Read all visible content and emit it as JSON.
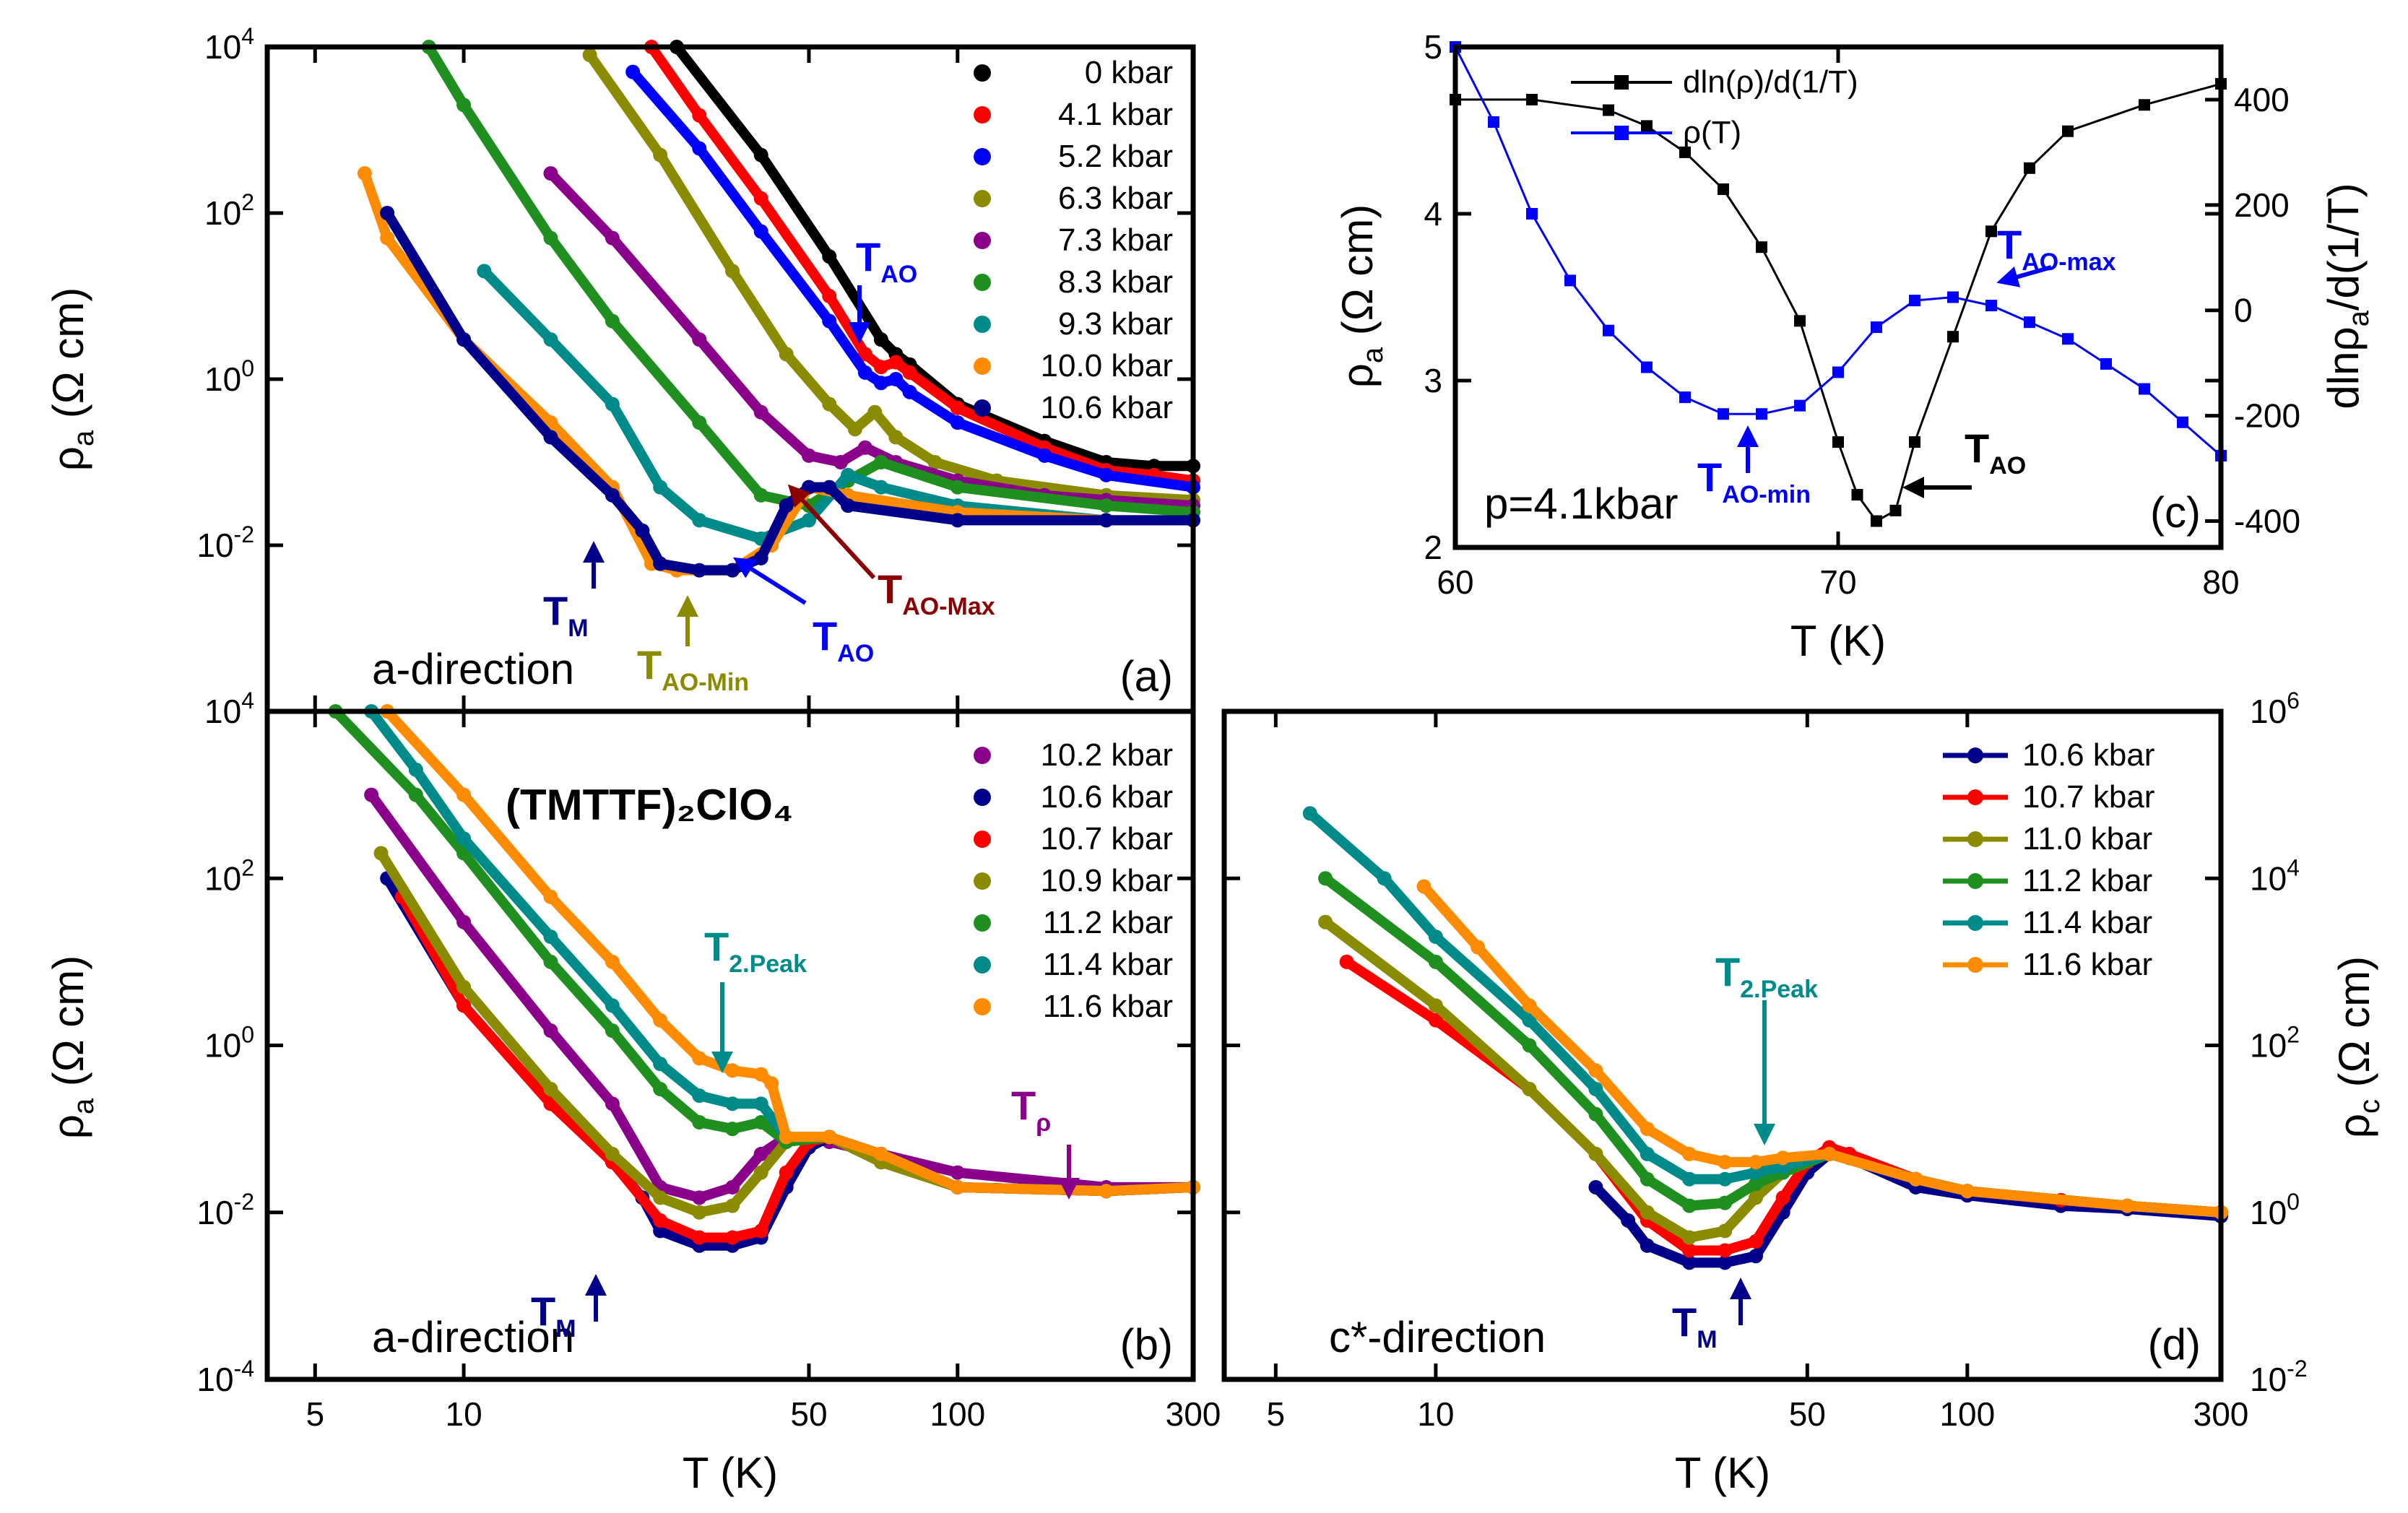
{
  "chart_data": [
    {
      "panel": "(a)",
      "type": "line",
      "xscale": "log",
      "yscale": "log",
      "xlim": [
        4,
        300
      ],
      "ylim": [
        0.0001,
        10000
      ],
      "xlabel": "",
      "ylabel": "ρ_a (Ω cm)",
      "xticks": [
        "5",
        "10",
        "50",
        "100",
        "300"
      ],
      "yticks": [
        "10^-2",
        "10^0",
        "10^2",
        "10^4"
      ],
      "direction_label": "a-direction",
      "series": [
        {
          "name": "0 kbar",
          "color": "#000000",
          "x": [
            27,
            40,
            55,
            70,
            75,
            80,
            100,
            150,
            200,
            250,
            300
          ],
          "y": [
            10000,
            500,
            30,
            3,
            2,
            1.5,
            0.5,
            0.18,
            0.1,
            0.09,
            0.09
          ]
        },
        {
          "name": "4.1 kbar",
          "color": "#ff0000",
          "x": [
            24,
            30,
            40,
            55,
            65,
            70,
            75,
            80,
            100,
            150,
            200,
            250,
            300
          ],
          "y": [
            10000,
            1500,
            150,
            10,
            2,
            1.4,
            1.6,
            1.2,
            0.45,
            0.15,
            0.08,
            0.07,
            0.06
          ]
        },
        {
          "name": "5.2 kbar",
          "color": "#0000ff",
          "x": [
            22,
            30,
            40,
            55,
            65,
            70,
            75,
            80,
            100,
            150,
            200,
            300
          ],
          "y": [
            5000,
            600,
            60,
            5,
            1.2,
            0.9,
            1.0,
            0.7,
            0.3,
            0.12,
            0.07,
            0.05
          ]
        },
        {
          "name": "6.3 kbar",
          "color": "#8b8b00",
          "x": [
            18,
            25,
            35,
            45,
            55,
            62,
            68,
            75,
            90,
            120,
            200,
            300
          ],
          "y": [
            8000,
            500,
            20,
            2,
            0.5,
            0.25,
            0.4,
            0.2,
            0.1,
            0.06,
            0.04,
            0.035
          ]
        },
        {
          "name": "7.3 kbar",
          "color": "#8b008b",
          "x": [
            15,
            20,
            30,
            40,
            50,
            58,
            65,
            75,
            100,
            150,
            200,
            300
          ],
          "y": [
            300,
            50,
            3,
            0.4,
            0.12,
            0.1,
            0.15,
            0.1,
            0.06,
            0.04,
            0.035,
            0.03
          ]
        },
        {
          "name": "8.3 kbar",
          "color": "#1f8f1f",
          "x": [
            8.5,
            10,
            15,
            20,
            30,
            40,
            50,
            60,
            70,
            100,
            200,
            300
          ],
          "y": [
            10000,
            2000,
            50,
            5,
            0.3,
            0.04,
            0.03,
            0.06,
            0.1,
            0.05,
            0.03,
            0.025
          ]
        },
        {
          "name": "9.3 kbar",
          "color": "#008b8b",
          "x": [
            11,
            15,
            20,
            25,
            30,
            40,
            50,
            60,
            70,
            100,
            200,
            300
          ],
          "y": [
            20,
            3,
            0.5,
            0.05,
            0.02,
            0.012,
            0.02,
            0.07,
            0.05,
            0.03,
            0.02,
            0.02
          ]
        },
        {
          "name": "10.0 kbar",
          "color": "#ff8c00",
          "x": [
            6.3,
            7,
            10,
            15,
            20,
            24,
            27,
            35,
            42,
            50,
            60,
            100,
            200,
            300
          ],
          "y": [
            300,
            50,
            3,
            0.3,
            0.05,
            0.006,
            0.005,
            0.005,
            0.01,
            0.05,
            0.04,
            0.025,
            0.02,
            0.02
          ]
        },
        {
          "name": "10.6 kbar",
          "color": "#00008b",
          "x": [
            7,
            10,
            15,
            20,
            23,
            25,
            30,
            35,
            40,
            45,
            50,
            55,
            60,
            100,
            200,
            300
          ],
          "y": [
            100,
            3,
            0.2,
            0.04,
            0.015,
            0.006,
            0.005,
            0.005,
            0.007,
            0.03,
            0.05,
            0.05,
            0.03,
            0.02,
            0.02,
            0.02
          ]
        }
      ],
      "annotations": [
        {
          "label": "T",
          "sub": "AO",
          "color": "#0000ff"
        },
        {
          "label": "T",
          "sub": "M",
          "color": "#00008b"
        },
        {
          "label": "T",
          "sub": "AO-Min",
          "color": "#8b8b00"
        },
        {
          "label": "T",
          "sub": "AO",
          "color": "#0000ff"
        },
        {
          "label": "T",
          "sub": "AO-Max",
          "color": "#8b0000"
        }
      ]
    },
    {
      "panel": "(b)",
      "type": "line",
      "xscale": "log",
      "yscale": "log",
      "xlim": [
        4,
        300
      ],
      "ylim": [
        0.0001,
        10000
      ],
      "xlabel": "T (K)",
      "ylabel": "ρ_a (Ω cm)",
      "xticks": [
        "5",
        "10",
        "50",
        "100",
        "300"
      ],
      "yticks": [
        "10^-4",
        "10^-2",
        "10^0",
        "10^2",
        "10^4"
      ],
      "direction_label": "a-direction",
      "compound_label": "(TMTTF)₂ClO₄",
      "series": [
        {
          "name": "10.2 kbar",
          "color": "#8b008b",
          "x": [
            6.5,
            10,
            15,
            20,
            25,
            30,
            35,
            40,
            45,
            55,
            70,
            100,
            200,
            300
          ],
          "y": [
            1000,
            30,
            1.5,
            0.2,
            0.02,
            0.015,
            0.02,
            0.05,
            0.08,
            0.07,
            0.05,
            0.03,
            0.02,
            0.02
          ]
        },
        {
          "name": "10.6 kbar",
          "color": "#00008b",
          "x": [
            7,
            10,
            15,
            20,
            23,
            25,
            30,
            35,
            40,
            45,
            50,
            55,
            70,
            100,
            200,
            300
          ],
          "y": [
            100,
            3,
            0.2,
            0.04,
            0.015,
            0.006,
            0.004,
            0.004,
            0.005,
            0.02,
            0.06,
            0.08,
            0.04,
            0.02,
            0.018,
            0.02
          ]
        },
        {
          "name": "10.7 kbar",
          "color": "#ff0000",
          "x": [
            7.5,
            10,
            15,
            20,
            25,
            30,
            35,
            40,
            45,
            50,
            55,
            70,
            100,
            200,
            300
          ],
          "y": [
            60,
            3,
            0.2,
            0.04,
            0.008,
            0.005,
            0.005,
            0.006,
            0.03,
            0.07,
            0.08,
            0.04,
            0.02,
            0.018,
            0.02
          ]
        },
        {
          "name": "10.9 kbar",
          "color": "#8b8b00",
          "x": [
            6.8,
            10,
            15,
            20,
            25,
            30,
            35,
            40,
            45,
            55,
            70,
            100,
            200,
            300
          ],
          "y": [
            200,
            5,
            0.3,
            0.05,
            0.015,
            0.01,
            0.012,
            0.03,
            0.07,
            0.08,
            0.04,
            0.02,
            0.018,
            0.02
          ]
        },
        {
          "name": "11.2 kbar",
          "color": "#1f8f1f",
          "x": [
            5.5,
            8,
            10,
            15,
            20,
            25,
            30,
            35,
            40,
            45,
            55,
            70,
            100,
            200,
            300
          ],
          "y": [
            10000,
            1000,
            200,
            10,
            1.5,
            0.3,
            0.12,
            0.1,
            0.12,
            0.07,
            0.08,
            0.05,
            0.02,
            0.018,
            0.02
          ]
        },
        {
          "name": "11.4 kbar",
          "color": "#008b8b",
          "x": [
            6.5,
            8,
            10,
            15,
            20,
            25,
            30,
            35,
            40,
            45,
            55,
            70,
            100,
            200,
            300
          ],
          "y": [
            10000,
            2000,
            300,
            20,
            3,
            0.6,
            0.25,
            0.2,
            0.2,
            0.08,
            0.08,
            0.05,
            0.02,
            0.018,
            0.02
          ]
        },
        {
          "name": "11.6 kbar",
          "color": "#ff8c00",
          "x": [
            7,
            10,
            15,
            20,
            25,
            30,
            35,
            40,
            42,
            45,
            55,
            70,
            100,
            200,
            300
          ],
          "y": [
            10000,
            1000,
            60,
            10,
            2,
            0.7,
            0.5,
            0.45,
            0.35,
            0.08,
            0.08,
            0.05,
            0.02,
            0.018,
            0.02
          ]
        }
      ],
      "annotations": [
        {
          "label": "T",
          "sub": "2.Peak",
          "color": "#008b8b"
        },
        {
          "label": "T",
          "sub": "ρ",
          "color": "#8b008b"
        },
        {
          "label": "T",
          "sub": "M",
          "color": "#00008b"
        }
      ]
    },
    {
      "panel": "(c)",
      "type": "line",
      "xscale": "linear",
      "yscale": "linear",
      "xlim": [
        60,
        80
      ],
      "ylim": [
        2,
        5
      ],
      "y2lim": [
        -450,
        500
      ],
      "xlabel": "T (K)",
      "ylabel": "ρ_a (Ω cm)",
      "y2label": "dlnρ_a/d(1/T)",
      "xticks": [
        "60",
        "70",
        "80"
      ],
      "yticks": [
        "2",
        "3",
        "4",
        "5"
      ],
      "y2ticks": [
        "-400",
        "-200",
        "0",
        "200",
        "400"
      ],
      "pressure_label": "p=4.1kbar",
      "series": [
        {
          "name": "dln(ρ)/d(1/T)",
          "axis": "right",
          "color": "#000000",
          "x": [
            60,
            62,
            64,
            65,
            66,
            67,
            68,
            69,
            70,
            70.5,
            71,
            71.5,
            72,
            73,
            74,
            75,
            76,
            78,
            80
          ],
          "y": [
            400,
            400,
            380,
            350,
            300,
            230,
            120,
            -20,
            -250,
            -350,
            -400,
            -380,
            -250,
            -50,
            150,
            270,
            340,
            390,
            430
          ]
        },
        {
          "name": "ρ(T)",
          "axis": "left",
          "color": "#0000ff",
          "x": [
            60,
            61,
            62,
            63,
            64,
            65,
            66,
            67,
            68,
            69,
            70,
            71,
            72,
            73,
            74,
            75,
            76,
            77,
            78,
            79,
            80
          ],
          "y": [
            5.0,
            4.55,
            4.0,
            3.6,
            3.3,
            3.08,
            2.9,
            2.8,
            2.8,
            2.85,
            3.05,
            3.32,
            3.48,
            3.5,
            3.45,
            3.35,
            3.25,
            3.1,
            2.95,
            2.75,
            2.55
          ]
        }
      ],
      "annotations": [
        {
          "label": "T",
          "sub": "AO-max",
          "color": "#0000ff"
        },
        {
          "label": "T",
          "sub": "AO-min",
          "color": "#0000ff"
        },
        {
          "label": "T",
          "sub": "AO",
          "color": "#000000"
        }
      ]
    },
    {
      "panel": "(d)",
      "type": "line",
      "xscale": "log",
      "yscale": "log",
      "xlim": [
        4,
        300
      ],
      "ylim": [
        0.01,
        1000000
      ],
      "xlabel": "T (K)",
      "ylabel": "ρ_c (Ω cm)",
      "xticks": [
        "5",
        "10",
        "50",
        "100",
        "300"
      ],
      "yticks": [
        "10^-2",
        "10^0",
        "10^2",
        "10^4",
        "10^6"
      ],
      "direction_label": "c*-direction",
      "series": [
        {
          "name": "10.6 kbar",
          "color": "#00008b",
          "x": [
            20,
            23,
            25,
            30,
            35,
            40,
            45,
            50,
            55,
            60,
            80,
            100,
            150,
            200,
            300
          ],
          "y": [
            2,
            0.8,
            0.4,
            0.25,
            0.25,
            0.3,
            1.0,
            3.0,
            5.0,
            4.5,
            2.0,
            1.6,
            1.2,
            1.1,
            0.9
          ]
        },
        {
          "name": "10.7 kbar",
          "color": "#ff0000",
          "x": [
            6.8,
            10,
            15,
            20,
            25,
            30,
            35,
            40,
            45,
            50,
            55,
            60,
            80,
            100,
            150,
            200,
            300
          ],
          "y": [
            1000,
            200,
            30,
            5,
            0.8,
            0.35,
            0.35,
            0.45,
            1.5,
            4.0,
            6.0,
            5.0,
            2.5,
            1.8,
            1.4,
            1.2,
            1.0
          ]
        },
        {
          "name": "11.0 kbar",
          "color": "#8b8b00",
          "x": [
            6.2,
            10,
            15,
            20,
            25,
            30,
            35,
            40,
            45,
            55,
            80,
            100,
            200,
            300
          ],
          "y": [
            3000,
            300,
            30,
            5,
            1.0,
            0.5,
            0.6,
            1.5,
            3.0,
            5.0,
            2.5,
            1.8,
            1.2,
            1.0
          ]
        },
        {
          "name": "11.2 kbar",
          "color": "#1f8f1f",
          "x": [
            6.2,
            10,
            15,
            20,
            25,
            30,
            35,
            40,
            45,
            55,
            80,
            100,
            200,
            300
          ],
          "y": [
            10000,
            1000,
            100,
            15,
            2.5,
            1.2,
            1.3,
            2.2,
            3.0,
            5.0,
            2.5,
            1.8,
            1.2,
            1.0
          ]
        },
        {
          "name": "11.4 kbar",
          "color": "#008b8b",
          "x": [
            5.8,
            8,
            10,
            15,
            20,
            25,
            30,
            35,
            40,
            45,
            55,
            80,
            100,
            200,
            300
          ],
          "y": [
            60000,
            10000,
            2000,
            200,
            30,
            5,
            2.5,
            2.5,
            3.0,
            3.5,
            5.0,
            2.5,
            1.8,
            1.2,
            1.0
          ]
        },
        {
          "name": "11.6 kbar",
          "color": "#ff8c00",
          "x": [
            9.5,
            12,
            15,
            20,
            25,
            30,
            35,
            40,
            45,
            55,
            80,
            100,
            200,
            300
          ],
          "y": [
            8000,
            1500,
            300,
            50,
            10,
            5,
            4,
            4,
            4.5,
            5.0,
            2.5,
            1.8,
            1.2,
            1.0
          ]
        }
      ],
      "annotations": [
        {
          "label": "T",
          "sub": "2.Peak",
          "color": "#008b8b"
        },
        {
          "label": "T",
          "sub": "M",
          "color": "#00008b"
        }
      ]
    }
  ]
}
